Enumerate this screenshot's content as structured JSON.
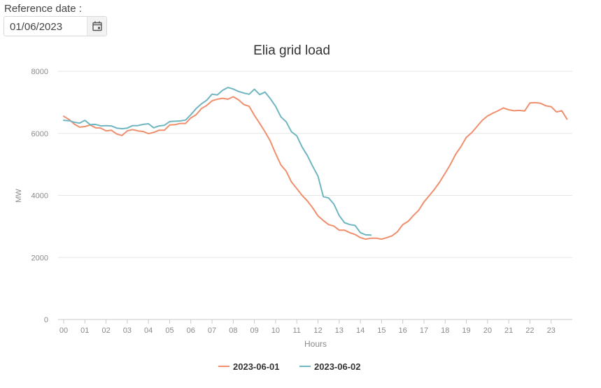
{
  "reference_date": {
    "label": "Reference date :",
    "value": "01/06/2023"
  },
  "icons": {
    "calendar": "calendar-icon"
  },
  "colors": {
    "series_1": "#ef8f6d",
    "series_2": "#6fb6c1",
    "grid": "#e6e6e6",
    "axis_text": "#8a8a8a"
  },
  "chart_data": {
    "type": "line",
    "title": "Elia grid load",
    "xlabel": "Hours",
    "ylabel": "MW",
    "x_ticks": [
      "00",
      "01",
      "02",
      "03",
      "04",
      "05",
      "06",
      "07",
      "08",
      "09",
      "10",
      "11",
      "12",
      "13",
      "14",
      "15",
      "16",
      "17",
      "18",
      "19",
      "20",
      "21",
      "22",
      "23"
    ],
    "y_ticks": [
      0,
      2000,
      4000,
      6000,
      8000
    ],
    "ylim": [
      0,
      8000
    ],
    "xlim": [
      0,
      24
    ],
    "grid": true,
    "legend_position": "bottom",
    "series": [
      {
        "name": "2023-06-01",
        "color": "#ef8f6d",
        "x": [
          0,
          0.25,
          0.5,
          0.75,
          1,
          1.25,
          1.5,
          1.75,
          2,
          2.25,
          2.5,
          2.75,
          3,
          3.25,
          3.5,
          3.75,
          4,
          4.25,
          4.5,
          4.75,
          5,
          5.25,
          5.5,
          5.75,
          6,
          6.25,
          6.5,
          6.75,
          7,
          7.25,
          7.5,
          7.75,
          8,
          8.25,
          8.5,
          8.75,
          9,
          9.25,
          9.5,
          9.75,
          10,
          10.25,
          10.5,
          10.75,
          11,
          11.25,
          11.5,
          11.75,
          12,
          12.25,
          12.5,
          12.75,
          13,
          13.25,
          13.5,
          13.75,
          14,
          14.25,
          14.5,
          14.75,
          15,
          15.25,
          15.5,
          15.75,
          16,
          16.25,
          16.5,
          16.75,
          17,
          17.25,
          17.5,
          17.75,
          18,
          18.25,
          18.5,
          18.75,
          19,
          19.25,
          19.5,
          19.75,
          20,
          20.25,
          20.5,
          20.75,
          21,
          21.25,
          21.5,
          21.75,
          22,
          22.25,
          22.5,
          22.75,
          23,
          23.25,
          23.5,
          23.75
        ],
        "values": [
          6550,
          6450,
          6300,
          6200,
          6220,
          6270,
          6180,
          6170,
          6080,
          6100,
          5980,
          5930,
          6080,
          6120,
          6080,
          6060,
          5990,
          6030,
          6100,
          6100,
          6270,
          6280,
          6320,
          6320,
          6500,
          6600,
          6800,
          6900,
          7050,
          7100,
          7130,
          7100,
          7180,
          7080,
          6930,
          6870,
          6580,
          6320,
          6050,
          5750,
          5350,
          4980,
          4780,
          4430,
          4220,
          4000,
          3820,
          3600,
          3340,
          3190,
          3060,
          3010,
          2880,
          2880,
          2800,
          2740,
          2640,
          2590,
          2620,
          2620,
          2590,
          2640,
          2700,
          2830,
          3060,
          3160,
          3350,
          3520,
          3790,
          3990,
          4200,
          4440,
          4720,
          5000,
          5330,
          5580,
          5870,
          6020,
          6220,
          6420,
          6560,
          6650,
          6730,
          6820,
          6760,
          6730,
          6740,
          6720,
          6980,
          6990,
          6970,
          6890,
          6860,
          6690,
          6730,
          6460
        ]
      },
      {
        "name": "2023-06-02",
        "color": "#6fb6c1",
        "x": [
          0,
          0.25,
          0.5,
          0.75,
          1,
          1.25,
          1.5,
          1.75,
          2,
          2.25,
          2.5,
          2.75,
          3,
          3.25,
          3.5,
          3.75,
          4,
          4.25,
          4.5,
          4.75,
          5,
          5.25,
          5.5,
          5.75,
          6,
          6.25,
          6.5,
          6.75,
          7,
          7.25,
          7.5,
          7.75,
          8,
          8.25,
          8.5,
          8.75,
          9,
          9.25,
          9.5,
          9.75,
          10,
          10.25,
          10.5,
          10.75,
          11,
          11.25,
          11.5,
          11.75,
          12,
          12.25,
          12.5,
          12.75,
          13,
          13.25,
          13.5,
          13.75,
          14,
          14.25,
          14.5
        ],
        "values": [
          6420,
          6410,
          6360,
          6330,
          6420,
          6280,
          6290,
          6240,
          6250,
          6240,
          6170,
          6150,
          6170,
          6250,
          6250,
          6290,
          6310,
          6180,
          6240,
          6260,
          6380,
          6390,
          6400,
          6430,
          6600,
          6800,
          6950,
          7070,
          7260,
          7240,
          7390,
          7480,
          7430,
          7350,
          7300,
          7260,
          7420,
          7250,
          7330,
          7120,
          6870,
          6530,
          6370,
          6050,
          5920,
          5560,
          5280,
          4940,
          4620,
          3960,
          3920,
          3720,
          3350,
          3120,
          3060,
          3030,
          2800,
          2730,
          2720
        ]
      }
    ]
  }
}
